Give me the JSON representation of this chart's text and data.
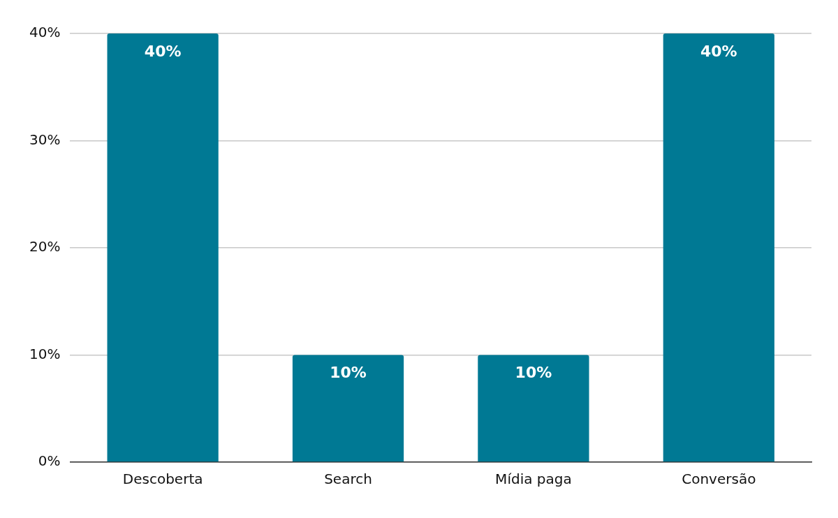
{
  "chart_data": {
    "type": "bar",
    "categories": [
      "Descoberta",
      "Search",
      "Mídia paga",
      "Conversão"
    ],
    "values": [
      40,
      10,
      10,
      40
    ],
    "color": "#007994",
    "value_labels": [
      "40%",
      "10%",
      "10%",
      "40%"
    ],
    "ylim": [
      0,
      40
    ],
    "yticks": [
      {
        "value": 0,
        "label": "0%"
      },
      {
        "value": 10,
        "label": "10%"
      },
      {
        "value": 20,
        "label": "20%"
      },
      {
        "value": 30,
        "label": "30%"
      },
      {
        "value": 40,
        "label": "40%"
      }
    ],
    "grid": "y",
    "legend": false
  }
}
